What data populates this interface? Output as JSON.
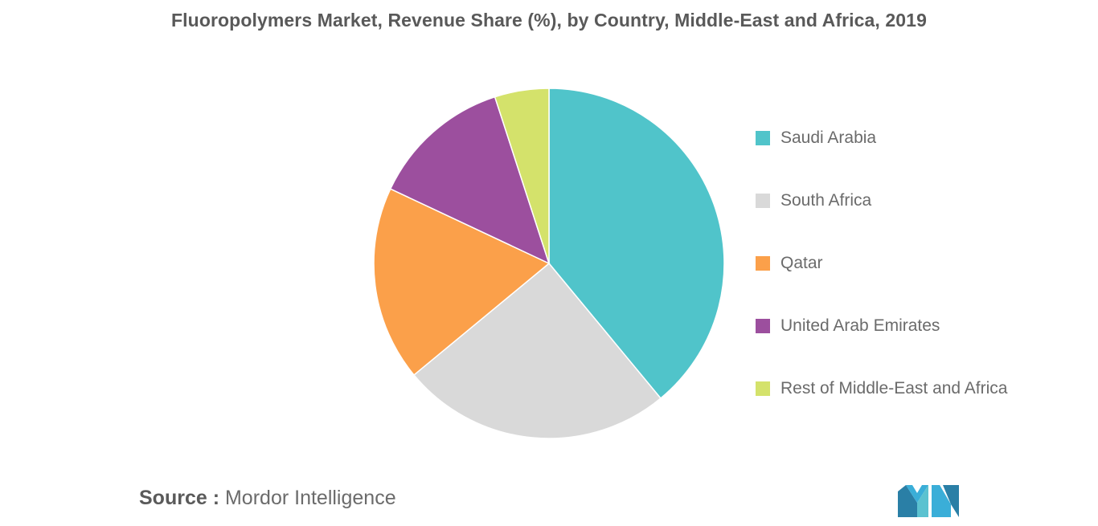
{
  "title": "Fluoropolymers Market, Revenue Share (%), by Country, Middle-East and Africa, 2019",
  "source": {
    "key": "Source :",
    "value": "Mordor Intelligence"
  },
  "logo": {
    "icon": "mordor-intelligence-logo-icon",
    "colors": [
      "#3aaed8",
      "#5bc2d0",
      "#2a7fa6"
    ]
  },
  "chart_data": {
    "type": "pie",
    "title": "Fluoropolymers Market, Revenue Share (%), by Country, Middle-East and Africa, 2019",
    "legend_position": "right",
    "start_angle_deg": 0,
    "direction": "clockwise",
    "series": [
      {
        "name": "Saudi Arabia",
        "value": 39,
        "color": "#50c4ca"
      },
      {
        "name": "South Africa",
        "value": 25,
        "color": "#d9d9d9"
      },
      {
        "name": "Qatar",
        "value": 18,
        "color": "#fba04a"
      },
      {
        "name": "United Arab Emirates",
        "value": 13,
        "color": "#9c4f9e"
      },
      {
        "name": "Rest of Middle-East and Africa",
        "value": 5,
        "color": "#d4e26b"
      }
    ]
  }
}
